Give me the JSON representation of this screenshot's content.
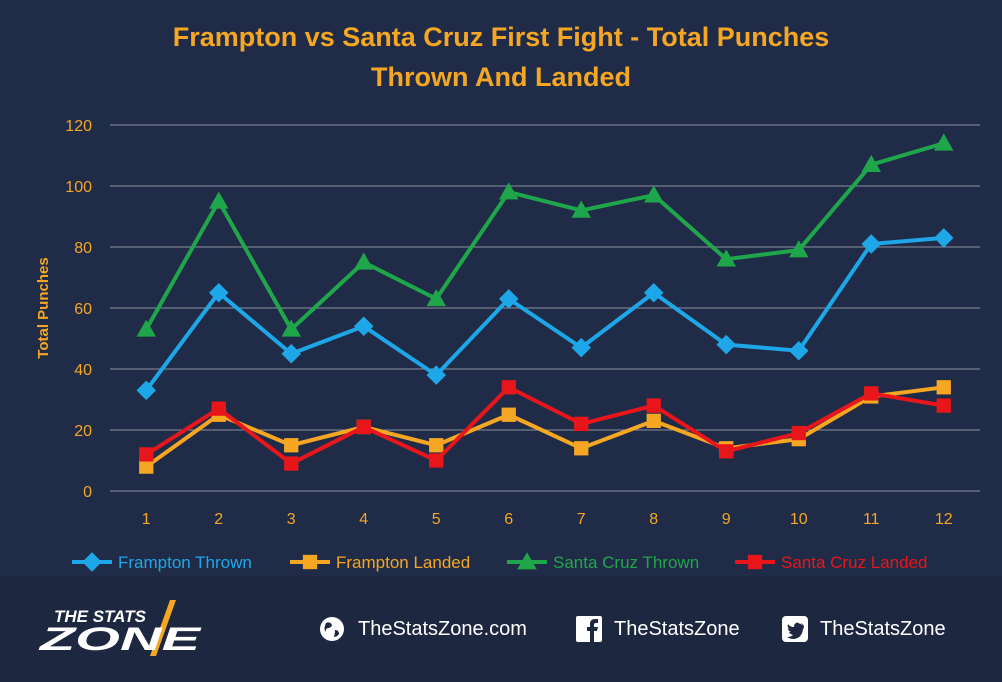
{
  "title_lines": [
    "Frampton vs Santa Cruz First Fight - Total Punches",
    "Thrown And Landed"
  ],
  "colors": {
    "background": "#202c47",
    "footer_background": "#1d273f",
    "title": "#f5a623",
    "axis_text": "#f5a623",
    "grid": "#8a8f9c"
  },
  "chart_data": {
    "type": "line",
    "title": "Frampton vs Santa Cruz First Fight - Total Punches Thrown And Landed",
    "xlabel": "",
    "ylabel": "Total Punches",
    "x": [
      "1",
      "2",
      "3",
      "4",
      "5",
      "6",
      "7",
      "8",
      "9",
      "10",
      "11",
      "12"
    ],
    "ylim": [
      0,
      120
    ],
    "yticks": [
      "0",
      "20",
      "40",
      "60",
      "80",
      "100",
      "120"
    ],
    "grid": true,
    "legend_position": "bottom",
    "series": [
      {
        "name": "Frampton Thrown",
        "color": "#1ea7e8",
        "marker": "diamond",
        "values": [
          33,
          65,
          45,
          54,
          38,
          63,
          47,
          65,
          48,
          46,
          81,
          83
        ]
      },
      {
        "name": "Frampton Landed",
        "color": "#f5a623",
        "marker": "square",
        "values": [
          8,
          25,
          15,
          21,
          15,
          25,
          14,
          23,
          14,
          17,
          31,
          34
        ]
      },
      {
        "name": "Santa Cruz Thrown",
        "color": "#1fa64a",
        "marker": "triangle",
        "values": [
          53,
          95,
          53,
          75,
          63,
          98,
          92,
          97,
          76,
          79,
          107,
          114
        ]
      },
      {
        "name": "Santa Cruz Landed",
        "color": "#e8161b",
        "marker": "square",
        "values": [
          12,
          27,
          9,
          21,
          10,
          34,
          22,
          28,
          13,
          19,
          32,
          28
        ]
      }
    ]
  },
  "footer": {
    "brand_top": "THE STATS",
    "brand_bottom": "ZONE",
    "website": "TheStatsZone.com",
    "facebook": "TheStatsZone",
    "twitter": "TheStatsZone",
    "icons": [
      "globe-icon",
      "facebook-icon",
      "twitter-icon"
    ]
  }
}
